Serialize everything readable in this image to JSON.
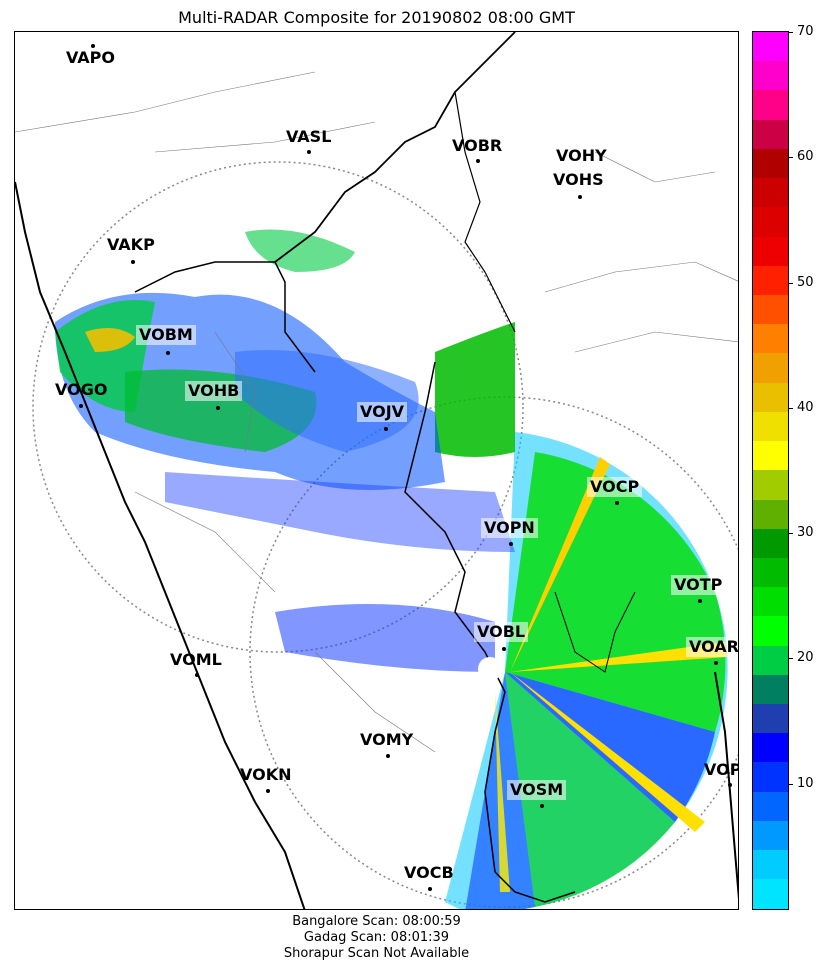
{
  "title": "Multi-RADAR Composite for 20190802 08:00 GMT",
  "stations": [
    {
      "name": "VAPO",
      "highlight": false
    },
    {
      "name": "VASL",
      "highlight": false
    },
    {
      "name": "VOBR",
      "highlight": false
    },
    {
      "name": "VOHY",
      "highlight": false
    },
    {
      "name": "VOHS",
      "highlight": false
    },
    {
      "name": "VAKP",
      "highlight": false
    },
    {
      "name": "VOBM",
      "highlight": true
    },
    {
      "name": "VOGO",
      "highlight": false
    },
    {
      "name": "VOHB",
      "highlight": true
    },
    {
      "name": "VOJV",
      "highlight": true
    },
    {
      "name": "VOCP",
      "highlight": true
    },
    {
      "name": "VOPN",
      "highlight": true
    },
    {
      "name": "VOTP",
      "highlight": true
    },
    {
      "name": "VOBL",
      "highlight": true
    },
    {
      "name": "VOAR",
      "highlight": true
    },
    {
      "name": "VOML",
      "highlight": false
    },
    {
      "name": "VOMY",
      "highlight": false
    },
    {
      "name": "VOKN",
      "highlight": false
    },
    {
      "name": "VOSM",
      "highlight": true
    },
    {
      "name": "VOPC",
      "highlight": false
    },
    {
      "name": "VOCB",
      "highlight": false
    }
  ],
  "colorbar": {
    "min": 0,
    "max": 70,
    "ticks": [
      "10",
      "20",
      "30",
      "40",
      "50",
      "60",
      "70"
    ],
    "colors": [
      "#00e5ff",
      "#00ccff",
      "#0099ff",
      "#0066ff",
      "#0033ff",
      "#0000ff",
      "#1f3fb0",
      "#008060",
      "#00cc44",
      "#00ff00",
      "#00dd00",
      "#00bb00",
      "#009900",
      "#60b000",
      "#a0cc00",
      "#ffff00",
      "#f0e000",
      "#e8c000",
      "#f0a000",
      "#ff8000",
      "#ff5000",
      "#ff2000",
      "#ee0000",
      "#dd0000",
      "#cc0000",
      "#b00000",
      "#cc0044",
      "#ff0088",
      "#ff00cc",
      "#ff00ff"
    ]
  },
  "footer": {
    "line1": "Bangalore Scan: 08:00:59",
    "line2": "Gadag Scan: 08:01:39",
    "line3": "Shorapur Scan Not Available"
  }
}
